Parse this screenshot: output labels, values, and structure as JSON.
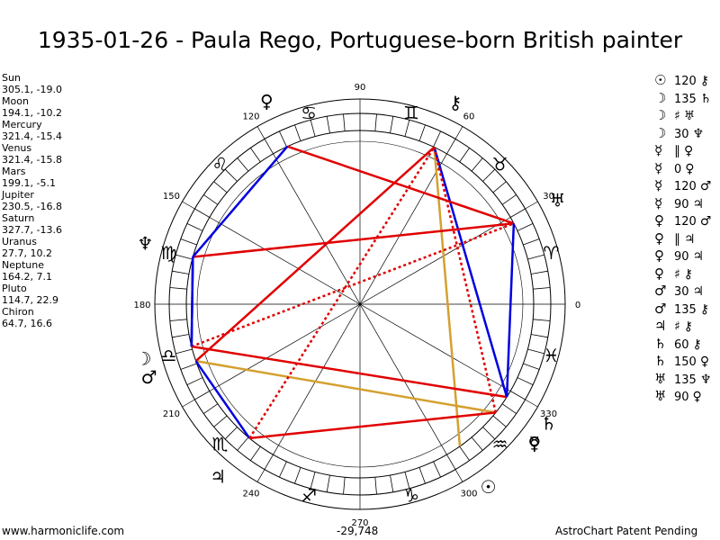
{
  "title": "1935-01-26 - Paula Rego, Portuguese-born British painter",
  "positions": [
    {
      "name": "Sun",
      "value": "305.1, -19.0"
    },
    {
      "name": "Moon",
      "value": "194.1, -10.2"
    },
    {
      "name": "Mercury",
      "value": "321.4, -15.4"
    },
    {
      "name": "Venus",
      "value": "321.4, -15.8"
    },
    {
      "name": "Mars",
      "value": "199.1, -5.1"
    },
    {
      "name": "Jupiter",
      "value": "230.5, -16.8"
    },
    {
      "name": "Saturn",
      "value": "327.7, -13.6"
    },
    {
      "name": "Uranus",
      "value": "27.7, 10.2"
    },
    {
      "name": "Neptune",
      "value": "164.2, 7.1"
    },
    {
      "name": "Pluto",
      "value": "114.7, 22.9"
    },
    {
      "name": "Chiron",
      "value": "64.7, 16.6"
    }
  ],
  "aspects": [
    {
      "a": "☉",
      "sym": "",
      "angle": "120",
      "b": "⚷"
    },
    {
      "a": "☽",
      "sym": "",
      "angle": "135",
      "b": "♄"
    },
    {
      "a": "☽",
      "sym": "♯",
      "angle": "",
      "b": "♅"
    },
    {
      "a": "☽",
      "sym": "",
      "angle": "30",
      "b": "♆"
    },
    {
      "a": "☿",
      "sym": "∥",
      "angle": "",
      "b": "♀"
    },
    {
      "a": "☿",
      "sym": "",
      "angle": "0",
      "b": "♀"
    },
    {
      "a": "☿",
      "sym": "",
      "angle": "120",
      "b": "♂"
    },
    {
      "a": "☿",
      "sym": "",
      "angle": "90",
      "b": "♃"
    },
    {
      "a": "♀",
      "sym": "",
      "angle": "120",
      "b": "♂"
    },
    {
      "a": "♀",
      "sym": "∥",
      "angle": "",
      "b": "♃"
    },
    {
      "a": "♀",
      "sym": "",
      "angle": "90",
      "b": "♃"
    },
    {
      "a": "♀",
      "sym": "♯",
      "angle": "",
      "b": "⚷"
    },
    {
      "a": "♂",
      "sym": "",
      "angle": "30",
      "b": "♃"
    },
    {
      "a": "♂",
      "sym": "",
      "angle": "135",
      "b": "⚷"
    },
    {
      "a": "♃",
      "sym": "♯",
      "angle": "",
      "b": "⚷"
    },
    {
      "a": "♄",
      "sym": "",
      "angle": "60",
      "b": "⚷"
    },
    {
      "a": "♄",
      "sym": "",
      "angle": "150",
      "b": "♀"
    },
    {
      "a": "♅",
      "sym": "",
      "angle": "135",
      "b": "♆"
    },
    {
      "a": "♅",
      "sym": "",
      "angle": "90",
      "b": "♀"
    }
  ],
  "wheel": {
    "degree_labels": [
      "0",
      "30",
      "60",
      "90",
      "120",
      "150",
      "180",
      "210",
      "240",
      "270",
      "300",
      "330"
    ],
    "signs": [
      {
        "glyph": "♈",
        "deg": 15
      },
      {
        "glyph": "♉",
        "deg": 45
      },
      {
        "glyph": "♊",
        "deg": 75
      },
      {
        "glyph": "♋",
        "deg": 105
      },
      {
        "glyph": "♌",
        "deg": 135
      },
      {
        "glyph": "♍",
        "deg": 165
      },
      {
        "glyph": "♎",
        "deg": 195
      },
      {
        "glyph": "♏",
        "deg": 225
      },
      {
        "glyph": "♐",
        "deg": 255
      },
      {
        "glyph": "♑",
        "deg": 285
      },
      {
        "glyph": "♒",
        "deg": 315
      },
      {
        "glyph": "♓",
        "deg": 345
      }
    ],
    "planets": [
      {
        "name": "Sun",
        "glyph": "☉",
        "deg": 305.1
      },
      {
        "name": "Moon",
        "glyph": "☽",
        "deg": 194.1
      },
      {
        "name": "Mercury",
        "glyph": "☿",
        "deg": 321.4
      },
      {
        "name": "Venus",
        "glyph": "♀",
        "deg": 321.4
      },
      {
        "name": "Mars",
        "glyph": "♂",
        "deg": 199.1
      },
      {
        "name": "Jupiter",
        "glyph": "♃",
        "deg": 230.5
      },
      {
        "name": "Saturn",
        "glyph": "♄",
        "deg": 327.7
      },
      {
        "name": "Uranus",
        "glyph": "♅",
        "deg": 27.7
      },
      {
        "name": "Neptune",
        "glyph": "♆",
        "deg": 164.2
      },
      {
        "name": "Pluto",
        "glyph": "♀",
        "deg": 114.7
      },
      {
        "name": "Chiron",
        "glyph": "⚷",
        "deg": 64.7
      }
    ],
    "aspect_lines": [
      {
        "from": "Sun",
        "to": "Chiron",
        "color": "#d4a030",
        "dotted": false
      },
      {
        "from": "Moon",
        "to": "Saturn",
        "color": "#e00000",
        "dotted": false
      },
      {
        "from": "Moon",
        "to": "Uranus",
        "color": "#e00000",
        "dotted": true
      },
      {
        "from": "Moon",
        "to": "Neptune",
        "color": "#0000e0",
        "dotted": false
      },
      {
        "from": "Mercury",
        "to": "Mars",
        "color": "#d4a030",
        "dotted": false
      },
      {
        "from": "Mercury",
        "to": "Jupiter",
        "color": "#e00000",
        "dotted": false
      },
      {
        "from": "Mars",
        "to": "Chiron",
        "color": "#e00000",
        "dotted": false
      },
      {
        "from": "Mars",
        "to": "Jupiter",
        "color": "#0000e0",
        "dotted": false
      },
      {
        "from": "Jupiter",
        "to": "Chiron",
        "color": "#e00000",
        "dotted": true
      },
      {
        "from": "Saturn",
        "to": "Chiron",
        "color": "#0000e0",
        "dotted": false
      },
      {
        "from": "Venus",
        "to": "Chiron",
        "color": "#e00000",
        "dotted": true
      },
      {
        "from": "Uranus",
        "to": "Neptune",
        "color": "#e00000",
        "dotted": false
      },
      {
        "from": "Uranus",
        "to": "Pluto",
        "color": "#e00000",
        "dotted": false
      },
      {
        "from": "Pluto",
        "to": "Neptune",
        "color": "#0000e0",
        "dotted": false
      },
      {
        "from": "Neptune",
        "to": "Moon",
        "color": "#0000e0",
        "dotted": false
      },
      {
        "from": "Saturn",
        "to": "Uranus",
        "color": "#0000e0",
        "dotted": false
      }
    ]
  },
  "footer": {
    "left": "www.harmoniclife.com",
    "center": "-29,748",
    "right": "AstroChart Patent Pending"
  }
}
